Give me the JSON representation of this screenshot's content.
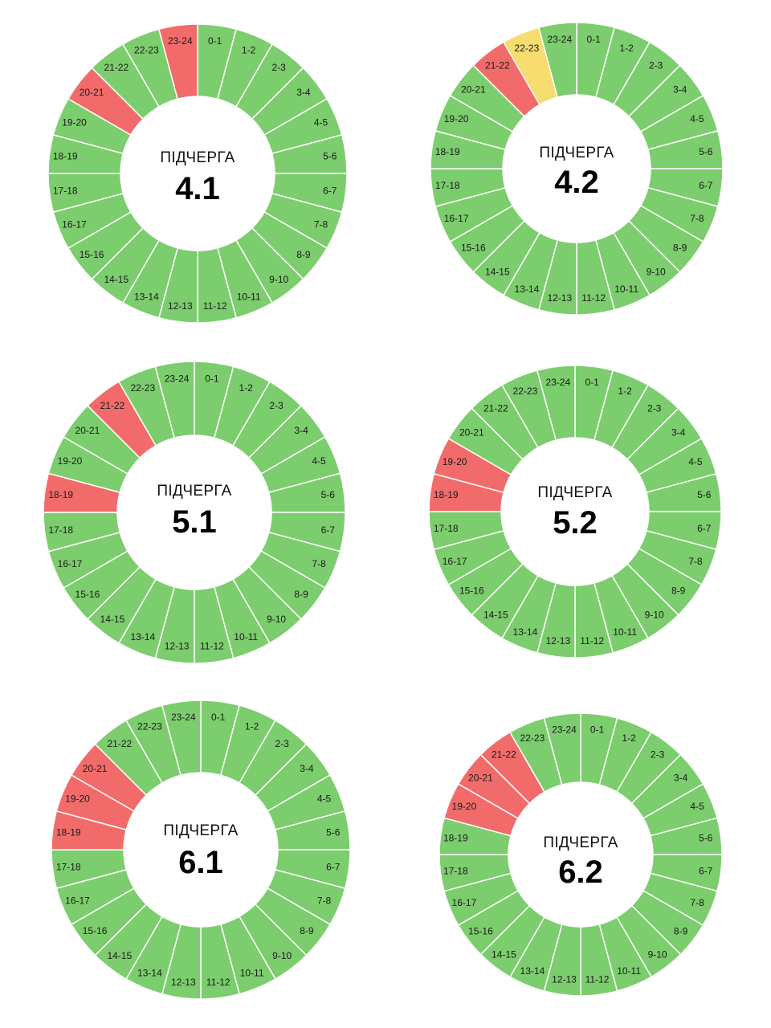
{
  "colors": {
    "on": "#7ccd6d",
    "off": "#f26b6b",
    "maybe": "#f7dc6f",
    "separator": "#ffffff"
  },
  "chart_data": [
    {
      "type": "pie",
      "title": "ПІДЧЕРГА",
      "subtitle": "4.1",
      "categories": [
        "0-1",
        "1-2",
        "2-3",
        "3-4",
        "4-5",
        "5-6",
        "6-7",
        "7-8",
        "8-9",
        "9-10",
        "10-11",
        "11-12",
        "12-13",
        "13-14",
        "14-15",
        "15-16",
        "16-17",
        "17-18",
        "18-19",
        "19-20",
        "20-21",
        "21-22",
        "22-23",
        "23-24"
      ],
      "values": [
        1,
        1,
        1,
        1,
        1,
        1,
        1,
        1,
        1,
        1,
        1,
        1,
        1,
        1,
        1,
        1,
        1,
        1,
        1,
        1,
        1,
        1,
        1,
        1
      ],
      "status": [
        "on",
        "on",
        "on",
        "on",
        "on",
        "on",
        "on",
        "on",
        "on",
        "on",
        "on",
        "on",
        "on",
        "on",
        "on",
        "on",
        "on",
        "on",
        "on",
        "on",
        "off",
        "on",
        "on",
        "off"
      ]
    },
    {
      "type": "pie",
      "title": "ПІДЧЕРГА",
      "subtitle": "4.2",
      "categories": [
        "0-1",
        "1-2",
        "2-3",
        "3-4",
        "4-5",
        "5-6",
        "6-7",
        "7-8",
        "8-9",
        "9-10",
        "10-11",
        "11-12",
        "12-13",
        "13-14",
        "14-15",
        "15-16",
        "16-17",
        "17-18",
        "18-19",
        "19-20",
        "20-21",
        "21-22",
        "22-23",
        "23-24"
      ],
      "values": [
        1,
        1,
        1,
        1,
        1,
        1,
        1,
        1,
        1,
        1,
        1,
        1,
        1,
        1,
        1,
        1,
        1,
        1,
        1,
        1,
        1,
        1,
        1,
        1
      ],
      "status": [
        "on",
        "on",
        "on",
        "on",
        "on",
        "on",
        "on",
        "on",
        "on",
        "on",
        "on",
        "on",
        "on",
        "on",
        "on",
        "on",
        "on",
        "on",
        "on",
        "on",
        "on",
        "off",
        "maybe",
        "on"
      ]
    },
    {
      "type": "pie",
      "title": "ПІДЧЕРГА",
      "subtitle": "5.1",
      "categories": [
        "0-1",
        "1-2",
        "2-3",
        "3-4",
        "4-5",
        "5-6",
        "6-7",
        "7-8",
        "8-9",
        "9-10",
        "10-11",
        "11-12",
        "12-13",
        "13-14",
        "14-15",
        "15-16",
        "16-17",
        "17-18",
        "18-19",
        "19-20",
        "20-21",
        "21-22",
        "22-23",
        "23-24"
      ],
      "values": [
        1,
        1,
        1,
        1,
        1,
        1,
        1,
        1,
        1,
        1,
        1,
        1,
        1,
        1,
        1,
        1,
        1,
        1,
        1,
        1,
        1,
        1,
        1,
        1
      ],
      "status": [
        "on",
        "on",
        "on",
        "on",
        "on",
        "on",
        "on",
        "on",
        "on",
        "on",
        "on",
        "on",
        "on",
        "on",
        "on",
        "on",
        "on",
        "on",
        "off",
        "on",
        "on",
        "off",
        "on",
        "on"
      ]
    },
    {
      "type": "pie",
      "title": "ПІДЧЕРГА",
      "subtitle": "5.2",
      "categories": [
        "0-1",
        "1-2",
        "2-3",
        "3-4",
        "4-5",
        "5-6",
        "6-7",
        "7-8",
        "8-9",
        "9-10",
        "10-11",
        "11-12",
        "12-13",
        "13-14",
        "14-15",
        "15-16",
        "16-17",
        "17-18",
        "18-19",
        "19-20",
        "20-21",
        "21-22",
        "22-23",
        "23-24"
      ],
      "values": [
        1,
        1,
        1,
        1,
        1,
        1,
        1,
        1,
        1,
        1,
        1,
        1,
        1,
        1,
        1,
        1,
        1,
        1,
        1,
        1,
        1,
        1,
        1,
        1
      ],
      "status": [
        "on",
        "on",
        "on",
        "on",
        "on",
        "on",
        "on",
        "on",
        "on",
        "on",
        "on",
        "on",
        "on",
        "on",
        "on",
        "on",
        "on",
        "on",
        "off",
        "off",
        "on",
        "on",
        "on",
        "on"
      ]
    },
    {
      "type": "pie",
      "title": "ПІДЧЕРГА",
      "subtitle": "6.1",
      "categories": [
        "0-1",
        "1-2",
        "2-3",
        "3-4",
        "4-5",
        "5-6",
        "6-7",
        "7-8",
        "8-9",
        "9-10",
        "10-11",
        "11-12",
        "12-13",
        "13-14",
        "14-15",
        "15-16",
        "16-17",
        "17-18",
        "18-19",
        "19-20",
        "20-21",
        "21-22",
        "22-23",
        "23-24"
      ],
      "values": [
        1,
        1,
        1,
        1,
        1,
        1,
        1,
        1,
        1,
        1,
        1,
        1,
        1,
        1,
        1,
        1,
        1,
        1,
        1,
        1,
        1,
        1,
        1,
        1
      ],
      "status": [
        "on",
        "on",
        "on",
        "on",
        "on",
        "on",
        "on",
        "on",
        "on",
        "on",
        "on",
        "on",
        "on",
        "on",
        "on",
        "on",
        "on",
        "on",
        "off",
        "off",
        "off",
        "on",
        "on",
        "on"
      ]
    },
    {
      "type": "pie",
      "title": "ПІДЧЕРГА",
      "subtitle": "6.2",
      "categories": [
        "0-1",
        "1-2",
        "2-3",
        "3-4",
        "4-5",
        "5-6",
        "6-7",
        "7-8",
        "8-9",
        "9-10",
        "10-11",
        "11-12",
        "12-13",
        "13-14",
        "14-15",
        "15-16",
        "16-17",
        "17-18",
        "18-19",
        "19-20",
        "20-21",
        "21-22",
        "22-23",
        "23-24"
      ],
      "values": [
        1,
        1,
        1,
        1,
        1,
        1,
        1,
        1,
        1,
        1,
        1,
        1,
        1,
        1,
        1,
        1,
        1,
        1,
        1,
        1,
        1,
        1,
        1,
        1
      ],
      "status": [
        "on",
        "on",
        "on",
        "on",
        "on",
        "on",
        "on",
        "on",
        "on",
        "on",
        "on",
        "on",
        "on",
        "on",
        "on",
        "on",
        "on",
        "on",
        "on",
        "off",
        "off",
        "off",
        "on",
        "on"
      ]
    }
  ]
}
